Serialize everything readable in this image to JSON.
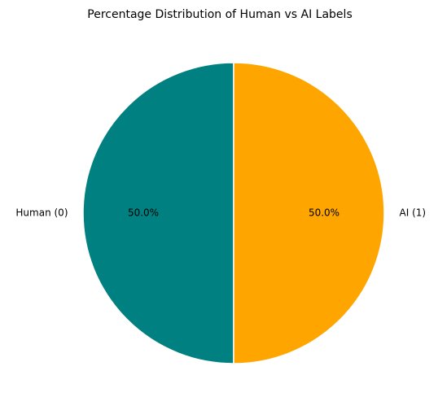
{
  "chart_data": {
    "type": "pie",
    "title": "Percentage Distribution of Human vs AI Labels",
    "categories": [
      "Human (0)",
      "AI (1)"
    ],
    "values": [
      50,
      50
    ],
    "value_labels": [
      "50.0%",
      "50.0%"
    ],
    "colors": [
      "#008080",
      "#ffa500"
    ]
  }
}
